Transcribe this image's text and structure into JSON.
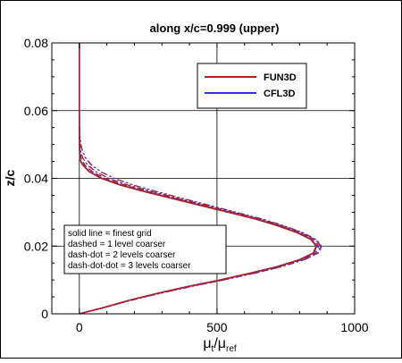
{
  "chart_data": {
    "type": "line",
    "title": "along x/c=0.999 (upper)",
    "xlabel_main": "μ",
    "xlabel_sub1": "t",
    "xlabel_slash": "/μ",
    "xlabel_sub2": "ref",
    "ylabel": "z/c",
    "xlim": [
      -100,
      1000
    ],
    "ylim": [
      0,
      0.08
    ],
    "xticks": [
      0,
      500,
      1000
    ],
    "xtick_labels": [
      "0",
      "500",
      "1000"
    ],
    "yticks": [
      0,
      0.02,
      0.04,
      0.06,
      0.08
    ],
    "ytick_labels": [
      "0",
      "0.02",
      "0.04",
      "0.06",
      "0.08"
    ],
    "grid": true,
    "legend": {
      "placement": "top-right",
      "entries": [
        {
          "name": "FUN3D",
          "color": "#b22222"
        },
        {
          "name": "CFL3D",
          "color": "#3030e0"
        }
      ]
    },
    "annotation": {
      "placement": "bottom-left",
      "lines": [
        "solid line = finest grid",
        "dashed = 1 level coarser",
        "dash-dot = 2 levels coarser",
        "dash-dot-dot = 3 levels coarser"
      ]
    },
    "series": [
      {
        "name": "FUN3D",
        "grid_level": "finest",
        "style": "solid",
        "color": "#b22222",
        "z": [
          0,
          0.002,
          0.004,
          0.006,
          0.008,
          0.01,
          0.012,
          0.014,
          0.016,
          0.018,
          0.02,
          0.022,
          0.024,
          0.026,
          0.028,
          0.03,
          0.032,
          0.034,
          0.036,
          0.038,
          0.04,
          0.042,
          0.044,
          0.045,
          0.046,
          0.048,
          0.05,
          0.055,
          0.06,
          0.07,
          0.08
        ],
        "mu": [
          0,
          95,
          180,
          280,
          390,
          510,
          620,
          720,
          800,
          850,
          860,
          840,
          790,
          720,
          640,
          540,
          440,
          340,
          240,
          150,
          80,
          35,
          12,
          5,
          2,
          1,
          0.5,
          0.2,
          0.1,
          0,
          0
        ]
      },
      {
        "name": "CFL3D",
        "grid_level": "finest",
        "style": "solid",
        "color": "#3030e0",
        "z": [
          0,
          0.002,
          0.004,
          0.006,
          0.008,
          0.01,
          0.012,
          0.014,
          0.016,
          0.018,
          0.02,
          0.022,
          0.024,
          0.026,
          0.028,
          0.03,
          0.032,
          0.034,
          0.036,
          0.038,
          0.04,
          0.042,
          0.044,
          0.045,
          0.046,
          0.048,
          0.05,
          0.055,
          0.06,
          0.07,
          0.08
        ],
        "mu": [
          0,
          96,
          182,
          283,
          393,
          513,
          624,
          724,
          805,
          852,
          862,
          842,
          792,
          722,
          642,
          543,
          443,
          343,
          243,
          152,
          82,
          36,
          13,
          5,
          2,
          1,
          0.5,
          0.2,
          0.1,
          0,
          0
        ]
      },
      {
        "name": "FUN3D",
        "grid_level": "1 level coarser",
        "style": "dashed",
        "color": "#b22222",
        "z": [
          0,
          0.002,
          0.004,
          0.006,
          0.008,
          0.01,
          0.012,
          0.014,
          0.016,
          0.018,
          0.02,
          0.022,
          0.024,
          0.026,
          0.028,
          0.03,
          0.032,
          0.034,
          0.036,
          0.038,
          0.04,
          0.042,
          0.044,
          0.046,
          0.048,
          0.05,
          0.055,
          0.06,
          0.07,
          0.08
        ],
        "mu": [
          0,
          96,
          183,
          284,
          395,
          516,
          628,
          728,
          808,
          858,
          868,
          848,
          798,
          728,
          648,
          548,
          448,
          350,
          252,
          162,
          92,
          45,
          18,
          6,
          2,
          1,
          0.4,
          0.1,
          0,
          0
        ]
      },
      {
        "name": "CFL3D",
        "grid_level": "1 level coarser",
        "style": "dashed",
        "color": "#3030e0",
        "z": [
          0,
          0.002,
          0.004,
          0.006,
          0.008,
          0.01,
          0.012,
          0.014,
          0.016,
          0.018,
          0.02,
          0.022,
          0.024,
          0.026,
          0.028,
          0.03,
          0.032,
          0.034,
          0.036,
          0.038,
          0.04,
          0.042,
          0.044,
          0.046,
          0.048,
          0.05,
          0.055,
          0.06,
          0.07,
          0.08
        ],
        "mu": [
          0,
          97,
          185,
          286,
          397,
          518,
          630,
          730,
          810,
          860,
          870,
          850,
          800,
          730,
          650,
          550,
          450,
          352,
          254,
          164,
          94,
          47,
          20,
          7,
          2,
          1,
          0.4,
          0.1,
          0,
          0
        ]
      },
      {
        "name": "FUN3D",
        "grid_level": "2 levels coarser",
        "style": "dash-dot",
        "color": "#b22222",
        "z": [
          0,
          0.002,
          0.004,
          0.006,
          0.008,
          0.01,
          0.012,
          0.014,
          0.016,
          0.018,
          0.02,
          0.022,
          0.024,
          0.026,
          0.028,
          0.03,
          0.032,
          0.034,
          0.036,
          0.038,
          0.04,
          0.042,
          0.044,
          0.046,
          0.048,
          0.05,
          0.052,
          0.055,
          0.06,
          0.07,
          0.08
        ],
        "mu": [
          0,
          97,
          186,
          288,
          400,
          522,
          635,
          736,
          816,
          866,
          876,
          856,
          806,
          736,
          656,
          558,
          460,
          362,
          266,
          176,
          106,
          58,
          28,
          12,
          5,
          2,
          1,
          0.4,
          0.1,
          0,
          0
        ]
      },
      {
        "name": "CFL3D",
        "grid_level": "2 levels coarser",
        "style": "dash-dot",
        "color": "#3030e0",
        "z": [
          0,
          0.002,
          0.004,
          0.006,
          0.008,
          0.01,
          0.012,
          0.014,
          0.016,
          0.018,
          0.02,
          0.022,
          0.024,
          0.026,
          0.028,
          0.03,
          0.032,
          0.034,
          0.036,
          0.038,
          0.04,
          0.042,
          0.044,
          0.046,
          0.048,
          0.05,
          0.052,
          0.055,
          0.06,
          0.07,
          0.08
        ],
        "mu": [
          0,
          98,
          188,
          290,
          402,
          524,
          637,
          738,
          818,
          868,
          878,
          858,
          808,
          738,
          658,
          560,
          462,
          364,
          268,
          178,
          108,
          60,
          30,
          13,
          5,
          2,
          1,
          0.4,
          0.1,
          0,
          0
        ]
      },
      {
        "name": "FUN3D",
        "grid_level": "3 levels coarser",
        "style": "dash-dot-dot",
        "color": "#b22222",
        "z": [
          0,
          0.002,
          0.004,
          0.006,
          0.008,
          0.01,
          0.012,
          0.014,
          0.016,
          0.018,
          0.02,
          0.022,
          0.024,
          0.026,
          0.028,
          0.03,
          0.032,
          0.034,
          0.036,
          0.038,
          0.04,
          0.042,
          0.044,
          0.046,
          0.048,
          0.05,
          0.052,
          0.055,
          0.058,
          0.062,
          0.07,
          0.08
        ],
        "mu": [
          0,
          98,
          188,
          290,
          402,
          524,
          637,
          738,
          818,
          868,
          878,
          858,
          810,
          742,
          664,
          568,
          474,
          378,
          284,
          196,
          126,
          76,
          42,
          22,
          11,
          5,
          2.5,
          1,
          0.4,
          0.1,
          0,
          0
        ]
      },
      {
        "name": "CFL3D",
        "grid_level": "3 levels coarser",
        "style": "dash-dot-dot",
        "color": "#3030e0",
        "z": [
          0,
          0.002,
          0.004,
          0.006,
          0.008,
          0.01,
          0.012,
          0.014,
          0.016,
          0.018,
          0.02,
          0.022,
          0.024,
          0.026,
          0.028,
          0.03,
          0.032,
          0.034,
          0.036,
          0.038,
          0.04,
          0.042,
          0.044,
          0.046,
          0.048,
          0.05,
          0.052,
          0.055,
          0.058,
          0.062,
          0.07,
          0.08
        ],
        "mu": [
          0,
          99,
          190,
          292,
          404,
          526,
          639,
          740,
          820,
          870,
          880,
          860,
          812,
          744,
          666,
          570,
          476,
          380,
          286,
          198,
          128,
          78,
          44,
          24,
          12,
          6,
          3,
          1.2,
          0.5,
          0.1,
          0,
          0
        ]
      }
    ]
  }
}
